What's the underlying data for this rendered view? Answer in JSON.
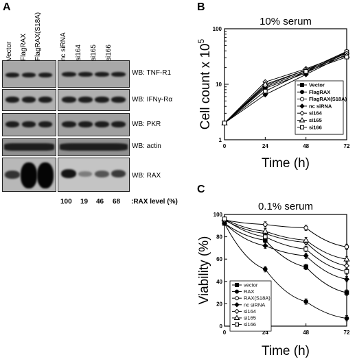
{
  "panel_a": {
    "letter": "A",
    "lanes_left": [
      "Vector",
      "FlagRAX",
      "FlagRAX(S18A)"
    ],
    "lanes_right": [
      "nc siRNA",
      "si164",
      "si165",
      "si166"
    ],
    "wb_labels": [
      "WB: TNF-R1",
      "WB: IFNγ-Rα",
      "WB: PKR",
      "WB: actin",
      "WB: RAX"
    ],
    "rax_levels": [
      "100",
      "19",
      "46",
      "68"
    ],
    "rax_level_label": ":RAX level (%)"
  },
  "chart_data": [
    {
      "id": "B",
      "type": "line",
      "title": "10% serum",
      "xlabel": "Time (h)",
      "ylabel": "Cell count x 10⁵",
      "ylabel_main": "Cell count x 10",
      "ylabel_sup": "5",
      "x": [
        0,
        24,
        48,
        72
      ],
      "xlim": [
        0,
        72
      ],
      "ylim": [
        1,
        100
      ],
      "yscale": "log",
      "xticks": [
        "0",
        "24",
        "48",
        "72"
      ],
      "yticks": [
        "1",
        "10",
        "100"
      ],
      "legend_position": "lower-right",
      "series": [
        {
          "name": "Vector",
          "marker": "square-filled",
          "values": [
            2,
            9,
            17,
            38
          ]
        },
        {
          "name": "FlagRAX",
          "marker": "circle-filled",
          "values": [
            2,
            8.5,
            16,
            37
          ]
        },
        {
          "name": "FlagRAX(S18A)",
          "marker": "circle-open",
          "values": [
            2,
            9.5,
            18,
            39
          ]
        },
        {
          "name": "nc siRNA",
          "marker": "diamond-filled",
          "values": [
            2,
            6.5,
            15,
            35
          ]
        },
        {
          "name": "si164",
          "marker": "diamond-open",
          "values": [
            2,
            11,
            19,
            36
          ]
        },
        {
          "name": "si165",
          "marker": "triangle-open",
          "values": [
            2,
            10,
            18,
            33
          ]
        },
        {
          "name": "si166",
          "marker": "square-open",
          "values": [
            2,
            7.5,
            17,
            31
          ]
        }
      ]
    },
    {
      "id": "C",
      "type": "line",
      "title": "0.1% serum",
      "xlabel": "Time (h)",
      "ylabel": "Viability (%)",
      "x": [
        0,
        24,
        48,
        72
      ],
      "xlim": [
        0,
        72
      ],
      "ylim": [
        0,
        100
      ],
      "xticks": [
        "0",
        "24",
        "48",
        "72"
      ],
      "yticks": [
        "0",
        "20",
        "40",
        "60",
        "80",
        "100"
      ],
      "legend_position": "lower-left",
      "series": [
        {
          "name": "vector",
          "marker": "square-filled",
          "values": [
            92,
            77,
            53,
            30
          ]
        },
        {
          "name": "RAX",
          "marker": "circle-filled",
          "values": [
            92,
            51,
            22,
            7
          ]
        },
        {
          "name": "RAX(S18A)",
          "marker": "circle-open",
          "values": [
            95,
            91,
            88,
            71
          ]
        },
        {
          "name": "nc siRNA",
          "marker": "diamond-filled",
          "values": [
            92,
            72,
            63,
            42
          ]
        },
        {
          "name": "si164",
          "marker": "diamond-open",
          "values": [
            95,
            83,
            75,
            54
          ]
        },
        {
          "name": "si165",
          "marker": "triangle-open",
          "values": [
            96,
            85,
            77,
            60
          ]
        },
        {
          "name": "si166",
          "marker": "square-open",
          "values": [
            96,
            80,
            69,
            49
          ]
        }
      ]
    }
  ]
}
